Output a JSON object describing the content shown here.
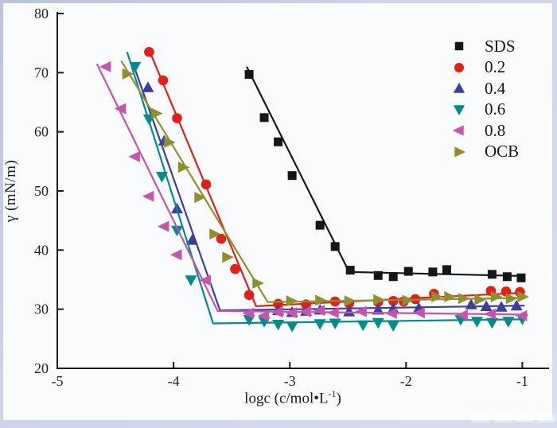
{
  "chart_data": {
    "type": "scatter",
    "title": "",
    "ylabel": "γ (mN/m)",
    "xlabel": "logc (c/mol•L⁻¹)",
    "xlabel_parts": {
      "prefix": "logc (c/mol•L",
      "sup": "-1",
      "suffix": ")"
    },
    "xlim": [
      -5,
      -0.77
    ],
    "ylim": [
      20,
      80
    ],
    "x_ticks": [
      -5,
      -4,
      -3,
      -2,
      -1
    ],
    "y_ticks": [
      20,
      30,
      40,
      50,
      60,
      70,
      80
    ],
    "grid": false,
    "legend_position": "top-right",
    "axis_color": "#1a1a1a",
    "series": [
      {
        "name": "SDS",
        "color": "#161616",
        "marker": "square",
        "line": [
          [
            -3.37,
            71.0
          ],
          [
            -2.49,
            36.3
          ],
          [
            -0.98,
            35.6
          ]
        ],
        "points": [
          [
            -3.35,
            69.7
          ],
          [
            -3.22,
            62.4
          ],
          [
            -3.1,
            58.3
          ],
          [
            -2.98,
            52.6
          ],
          [
            -2.74,
            44.2
          ],
          [
            -2.61,
            40.6
          ],
          [
            -2.48,
            36.6
          ],
          [
            -2.24,
            35.7
          ],
          [
            -2.11,
            35.5
          ],
          [
            -1.98,
            36.4
          ],
          [
            -1.77,
            36.3
          ],
          [
            -1.65,
            36.7
          ],
          [
            -1.26,
            35.9
          ],
          [
            -1.13,
            35.5
          ],
          [
            -1.01,
            35.3
          ]
        ]
      },
      {
        "name": "0.2",
        "color": "#e32017",
        "marker": "circle",
        "line": [
          [
            -4.22,
            74.3
          ],
          [
            -3.29,
            30.5
          ],
          [
            -0.98,
            32.8
          ]
        ],
        "points": [
          [
            -4.21,
            73.5
          ],
          [
            -4.09,
            68.7
          ],
          [
            -3.97,
            62.3
          ],
          [
            -3.72,
            51.1
          ],
          [
            -3.59,
            41.9
          ],
          [
            -3.47,
            36.8
          ],
          [
            -3.35,
            32.4
          ],
          [
            -3.1,
            30.9
          ],
          [
            -2.86,
            30.8
          ],
          [
            -2.61,
            31.3
          ],
          [
            -2.49,
            31.0
          ],
          [
            -2.24,
            31.2
          ],
          [
            -2.11,
            31.4
          ],
          [
            -2.02,
            31.3
          ],
          [
            -1.92,
            31.7
          ],
          [
            -1.76,
            32.6
          ],
          [
            -1.27,
            33.1
          ],
          [
            -1.14,
            33.0
          ],
          [
            -1.02,
            32.9
          ]
        ]
      },
      {
        "name": "0.4",
        "color": "#3a3f9e",
        "marker": "triangle-up",
        "line": [
          [
            -4.33,
            70.5
          ],
          [
            -3.6,
            29.8
          ],
          [
            -0.98,
            30.6
          ]
        ],
        "points": [
          [
            -4.22,
            67.5
          ],
          [
            -4.08,
            58.5
          ],
          [
            -3.97,
            47.0
          ],
          [
            -3.84,
            41.7
          ],
          [
            -3.1,
            29.8
          ],
          [
            -2.98,
            29.5
          ],
          [
            -2.86,
            29.7
          ],
          [
            -2.74,
            29.9
          ],
          [
            -2.49,
            29.6
          ],
          [
            -2.24,
            29.9
          ],
          [
            -2.11,
            30.1
          ],
          [
            -1.89,
            30.2
          ],
          [
            -1.44,
            30.8
          ],
          [
            -1.31,
            30.5
          ],
          [
            -1.18,
            30.4
          ],
          [
            -1.05,
            30.6
          ]
        ]
      },
      {
        "name": "0.6",
        "color": "#008b8d",
        "marker": "triangle-down",
        "line": [
          [
            -4.4,
            73.5
          ],
          [
            -3.66,
            27.6
          ],
          [
            -0.98,
            28.3
          ]
        ],
        "points": [
          [
            -4.33,
            71.0
          ],
          [
            -4.21,
            62.1
          ],
          [
            -4.1,
            52.4
          ],
          [
            -3.97,
            43.3
          ],
          [
            -3.85,
            34.9
          ],
          [
            -3.35,
            28.2
          ],
          [
            -3.22,
            27.9
          ],
          [
            -3.1,
            27.4
          ],
          [
            -2.98,
            27.1
          ],
          [
            -2.74,
            27.5
          ],
          [
            -2.61,
            27.6
          ],
          [
            -2.37,
            27.3
          ],
          [
            -2.24,
            27.7
          ],
          [
            -2.11,
            27.2
          ],
          [
            -1.53,
            28.2
          ],
          [
            -1.39,
            27.9
          ],
          [
            -1.26,
            27.7
          ],
          [
            -1.12,
            27.9
          ],
          [
            -1.0,
            28.3
          ]
        ]
      },
      {
        "name": "0.8",
        "color": "#c653ae",
        "marker": "triangle-left",
        "line": [
          [
            -4.66,
            71.5
          ],
          [
            -3.62,
            29.7
          ],
          [
            -0.98,
            29.1
          ]
        ],
        "points": [
          [
            -4.58,
            71.0
          ],
          [
            -4.45,
            63.9
          ],
          [
            -4.33,
            55.8
          ],
          [
            -4.21,
            49.1
          ],
          [
            -4.08,
            44.0
          ],
          [
            -3.97,
            39.2
          ],
          [
            -3.72,
            34.9
          ],
          [
            -3.35,
            29.3
          ],
          [
            -3.22,
            28.9
          ],
          [
            -3.1,
            29.5
          ],
          [
            -2.98,
            29.4
          ],
          [
            -2.86,
            29.6
          ],
          [
            -2.74,
            29.8
          ],
          [
            -2.62,
            29.4
          ],
          [
            -2.38,
            29.6
          ],
          [
            -2.12,
            29.3
          ],
          [
            -1.88,
            29.4
          ],
          [
            -1.51,
            29.0
          ],
          [
            -1.27,
            29.2
          ],
          [
            -1.0,
            28.9
          ]
        ]
      },
      {
        "name": "OCB",
        "color": "#8f8f2e",
        "marker": "triangle-right",
        "line": [
          [
            -4.45,
            72.0
          ],
          [
            -3.19,
            31.2
          ],
          [
            -0.97,
            31.9
          ]
        ],
        "points": [
          [
            -4.4,
            69.8
          ],
          [
            -4.15,
            63.1
          ],
          [
            -4.04,
            58.2
          ],
          [
            -3.92,
            54.0
          ],
          [
            -3.78,
            48.9
          ],
          [
            -3.65,
            42.7
          ],
          [
            -3.54,
            38.8
          ],
          [
            -3.28,
            34.4
          ],
          [
            -2.99,
            31.4
          ],
          [
            -2.74,
            31.5
          ],
          [
            -2.49,
            31.4
          ],
          [
            -2.24,
            31.6
          ],
          [
            -1.99,
            31.5
          ],
          [
            -1.74,
            32.1
          ],
          [
            -1.63,
            32.1
          ],
          [
            -1.51,
            31.8
          ],
          [
            -1.37,
            31.6
          ],
          [
            -1.23,
            32.1
          ],
          [
            -1.1,
            31.8
          ],
          [
            -1.0,
            32.1
          ]
        ]
      }
    ]
  }
}
